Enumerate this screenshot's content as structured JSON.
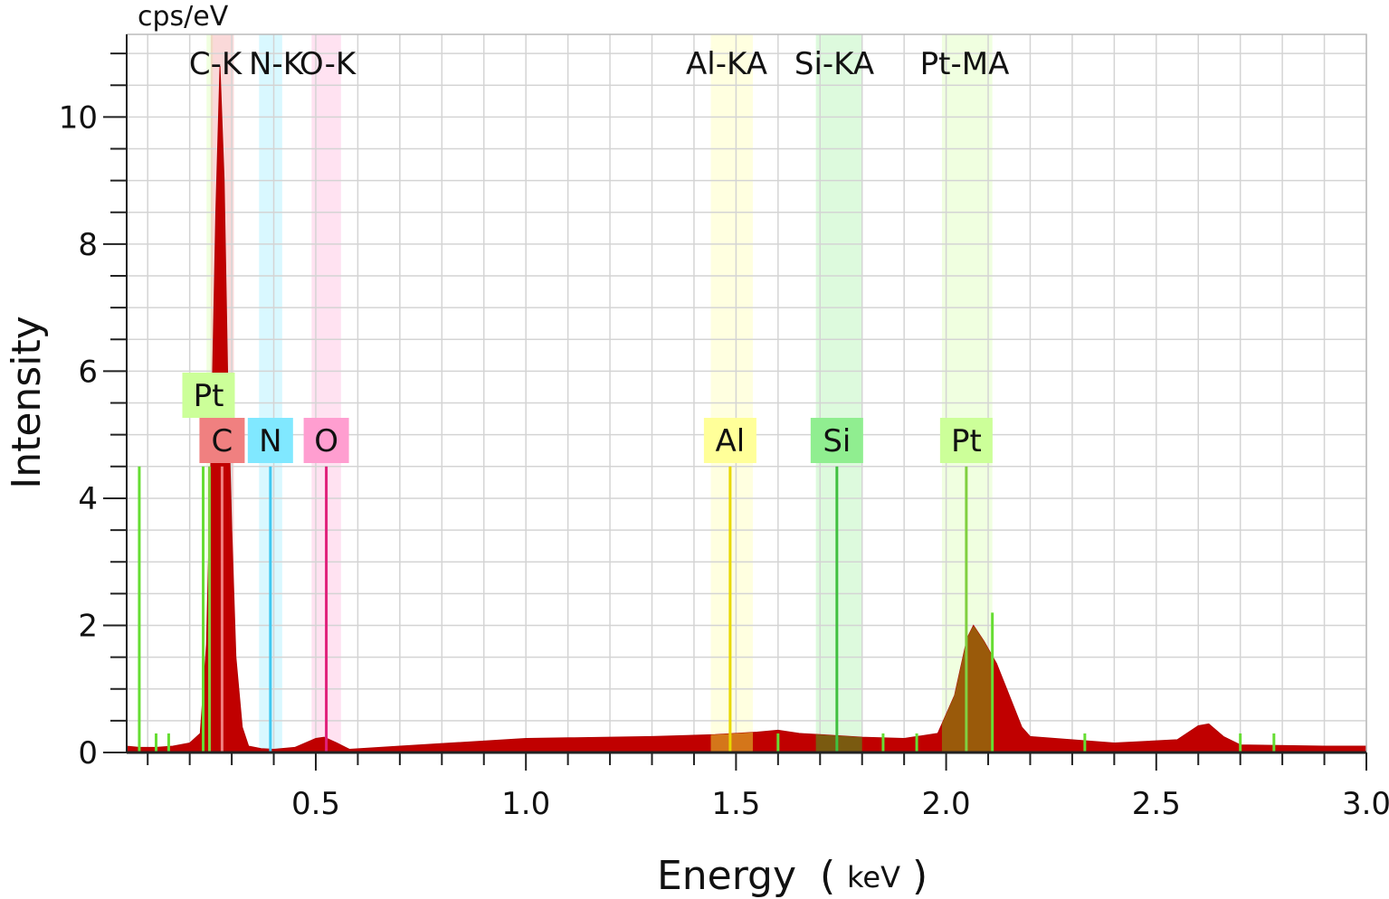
{
  "chart_data": {
    "type": "area",
    "unit_label": "cps/eV",
    "xlabel": "Energy",
    "xlabel_unit": "keV",
    "ylabel": "Intensity",
    "xlim": [
      0.05,
      3.0
    ],
    "ylim": [
      0,
      11.3
    ],
    "x_ticks": [
      0.5,
      1.0,
      1.5,
      2.0,
      2.5,
      3.0
    ],
    "x_tick_labels": [
      "0.5",
      "1.0",
      "1.5",
      "2.0",
      "2.5",
      "3.0"
    ],
    "y_ticks": [
      0,
      2,
      4,
      6,
      8,
      10
    ],
    "y_tick_labels": [
      "0",
      "2",
      "4",
      "6",
      "8",
      "10"
    ],
    "grid": true,
    "spectrum_color": "#c00000",
    "spectrum": [
      [
        0.05,
        0.1
      ],
      [
        0.08,
        0.08
      ],
      [
        0.12,
        0.08
      ],
      [
        0.16,
        0.1
      ],
      [
        0.2,
        0.15
      ],
      [
        0.225,
        0.3
      ],
      [
        0.24,
        1.7
      ],
      [
        0.25,
        4.5
      ],
      [
        0.262,
        8.5
      ],
      [
        0.272,
        10.8
      ],
      [
        0.282,
        9.0
      ],
      [
        0.29,
        6.0
      ],
      [
        0.3,
        3.5
      ],
      [
        0.31,
        1.5
      ],
      [
        0.325,
        0.4
      ],
      [
        0.34,
        0.1
      ],
      [
        0.37,
        0.06
      ],
      [
        0.4,
        0.05
      ],
      [
        0.45,
        0.08
      ],
      [
        0.5,
        0.22
      ],
      [
        0.52,
        0.24
      ],
      [
        0.55,
        0.15
      ],
      [
        0.58,
        0.05
      ],
      [
        0.7,
        0.1
      ],
      [
        1.0,
        0.22
      ],
      [
        1.3,
        0.25
      ],
      [
        1.45,
        0.28
      ],
      [
        1.55,
        0.32
      ],
      [
        1.6,
        0.35
      ],
      [
        1.65,
        0.3
      ],
      [
        1.7,
        0.28
      ],
      [
        1.8,
        0.24
      ],
      [
        1.9,
        0.22
      ],
      [
        1.98,
        0.3
      ],
      [
        2.02,
        0.9
      ],
      [
        2.05,
        1.8
      ],
      [
        2.065,
        2.0
      ],
      [
        2.09,
        1.75
      ],
      [
        2.12,
        1.4
      ],
      [
        2.15,
        0.9
      ],
      [
        2.18,
        0.4
      ],
      [
        2.2,
        0.25
      ],
      [
        2.4,
        0.15
      ],
      [
        2.55,
        0.2
      ],
      [
        2.6,
        0.42
      ],
      [
        2.625,
        0.45
      ],
      [
        2.66,
        0.25
      ],
      [
        2.7,
        0.12
      ],
      [
        2.9,
        0.1
      ],
      [
        3.0,
        0.1
      ]
    ],
    "elements": [
      {
        "symbol": "Pt",
        "line": "",
        "energy": 0.247,
        "band": [
          0.24,
          0.255
        ],
        "color": "#ccff99",
        "badge_row": 1
      },
      {
        "symbol": "C",
        "line": "C-K",
        "energy": 0.277,
        "band": [
          0.25,
          0.305
        ],
        "color": "#f08080",
        "badge_row": 0
      },
      {
        "symbol": "N",
        "line": "N-K",
        "energy": 0.392,
        "band": [
          0.365,
          0.42
        ],
        "color": "#80e8ff",
        "badge_row": 0
      },
      {
        "symbol": "O",
        "line": "O-K",
        "energy": 0.525,
        "band": [
          0.49,
          0.56
        ],
        "color": "#ff9ed0",
        "badge_row": 0
      },
      {
        "symbol": "Al",
        "line": "Al-KA",
        "energy": 1.486,
        "band": [
          1.44,
          1.54
        ],
        "color": "#ffff99",
        "badge_row": 0
      },
      {
        "symbol": "Si",
        "line": "Si-KA",
        "energy": 1.74,
        "band": [
          1.69,
          1.8
        ],
        "color": "#90ee90",
        "badge_row": 0
      },
      {
        "symbol": "Pt",
        "line": "Pt-MA",
        "energy": 2.048,
        "band": [
          1.99,
          2.11
        ],
        "color": "#ccff99",
        "badge_row": 0
      }
    ],
    "green_markers": [
      0.08,
      0.12,
      0.15,
      0.232,
      1.6,
      1.85,
      1.93,
      2.11,
      2.33,
      2.7,
      2.78
    ],
    "green_marker_heights": [
      4.5,
      0.3,
      0.3,
      4.5,
      0.3,
      0.3,
      0.3,
      2.2,
      0.3,
      0.3,
      0.3
    ]
  }
}
